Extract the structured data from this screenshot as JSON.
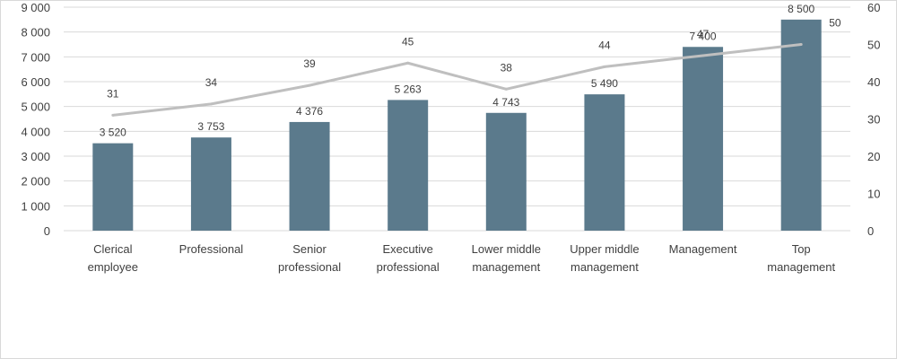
{
  "chart_data": {
    "type": "bar",
    "categories": [
      [
        "Clerical",
        "employee"
      ],
      [
        "Professional"
      ],
      [
        "Senior",
        "professional"
      ],
      [
        "Executive",
        "professional"
      ],
      [
        "Lower middle",
        "management"
      ],
      [
        "Upper middle",
        "management"
      ],
      [
        "Management"
      ],
      [
        "Top",
        "management"
      ]
    ],
    "series": [
      {
        "type": "bar",
        "axis": "left",
        "values": [
          3520,
          3753,
          4376,
          5263,
          4743,
          5490,
          7400,
          8500
        ],
        "labels": [
          "3 520",
          "3 753",
          "4 376",
          "5 263",
          "4 743",
          "5 490",
          "7 400",
          "8 500"
        ],
        "color": "#5b7a8c"
      },
      {
        "type": "line",
        "axis": "right",
        "values": [
          31,
          34,
          39,
          45,
          38,
          44,
          47,
          50
        ],
        "labels": [
          "31",
          "34",
          "39",
          "45",
          "38",
          "44",
          "47",
          "50"
        ],
        "color": "#bfbfbf"
      }
    ],
    "y_left": {
      "ylim": [
        0,
        9000
      ],
      "ticks": [
        0,
        1000,
        2000,
        3000,
        4000,
        5000,
        6000,
        7000,
        8000,
        9000
      ],
      "tick_labels": [
        "0",
        "1 000",
        "2 000",
        "3 000",
        "4 000",
        "5 000",
        "6 000",
        "7 000",
        "8 000",
        "9 000"
      ]
    },
    "y_right": {
      "ylim": [
        0,
        60
      ],
      "ticks": [
        0,
        10,
        20,
        30,
        40,
        50,
        60
      ],
      "tick_labels": [
        "0",
        "10",
        "20",
        "30",
        "40",
        "50",
        "60"
      ]
    },
    "grid": true,
    "legend": "none",
    "gridline_color": "#d9d9d9"
  }
}
